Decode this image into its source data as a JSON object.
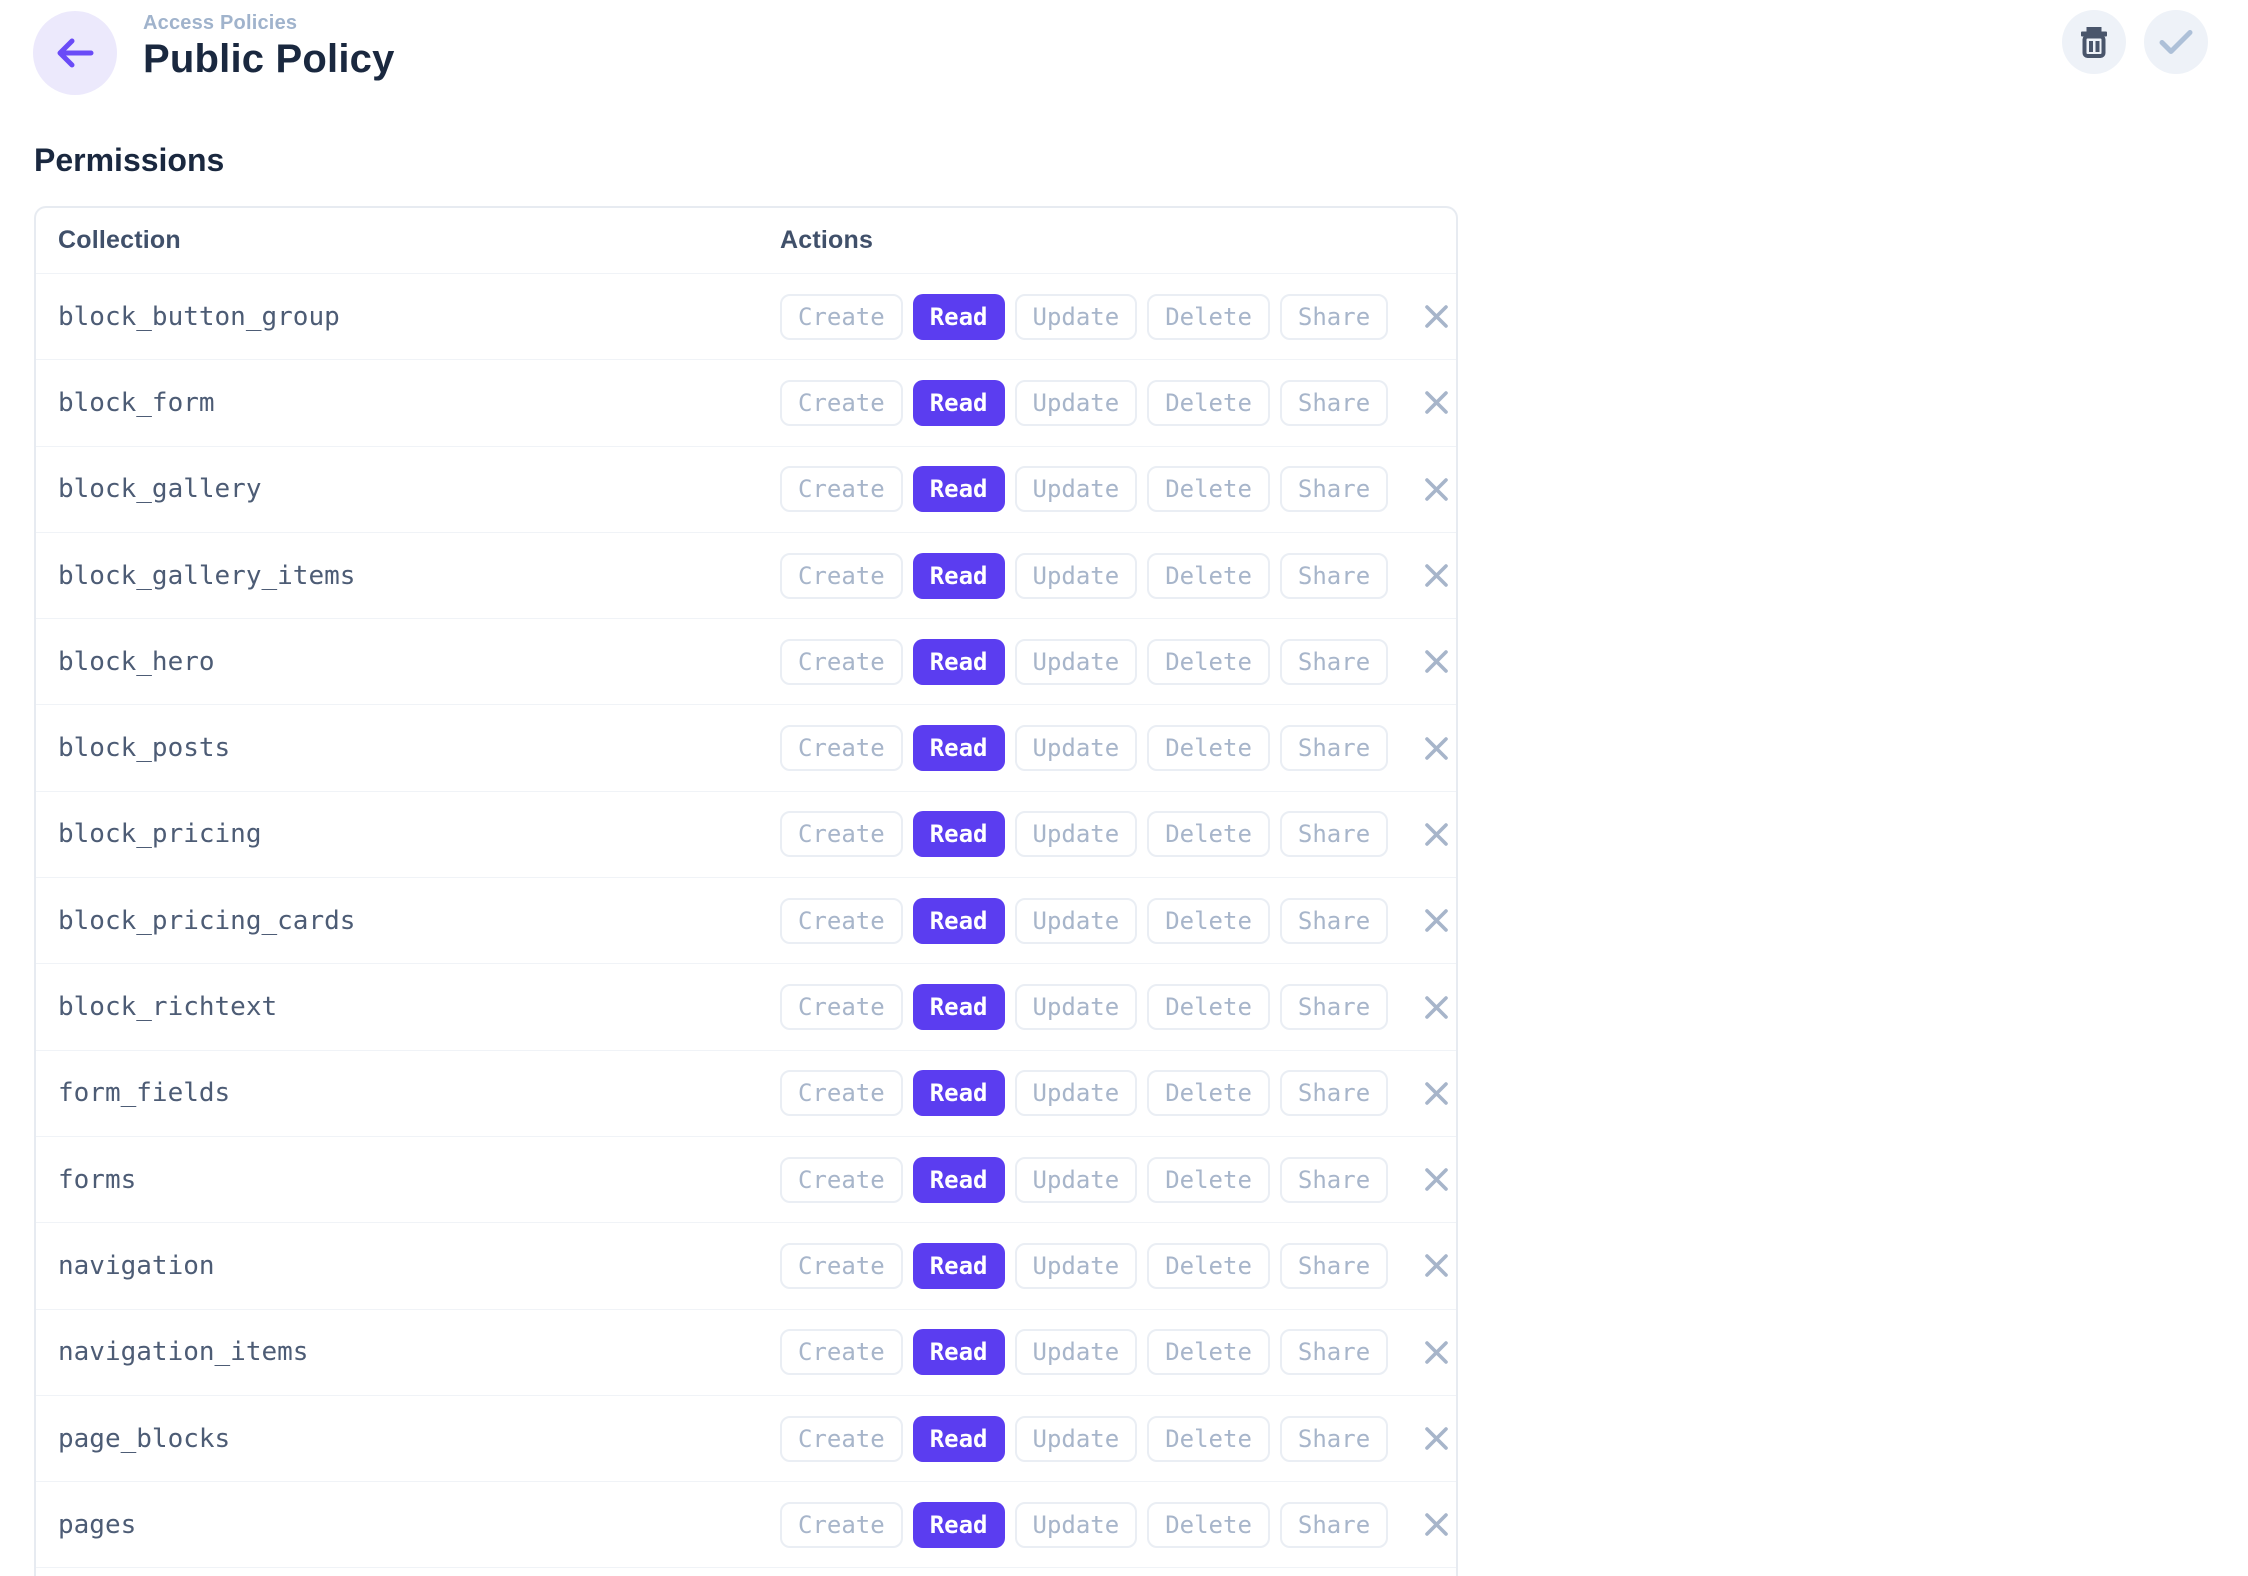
{
  "header": {
    "breadcrumb": "Access Policies",
    "title": "Public Policy",
    "back_icon": "arrow-left",
    "toolbar": [
      {
        "id": "delete",
        "icon": "trash"
      },
      {
        "id": "save",
        "icon": "check",
        "state": "disabled"
      }
    ]
  },
  "permissions": {
    "heading": "Permissions",
    "table": {
      "columns": [
        "Collection",
        "Actions"
      ],
      "action_labels": [
        "Create",
        "Read",
        "Update",
        "Delete",
        "Share"
      ],
      "rows": [
        {
          "collection": "block_button_group",
          "active_actions": [
            "Read"
          ]
        },
        {
          "collection": "block_form",
          "active_actions": [
            "Read"
          ]
        },
        {
          "collection": "block_gallery",
          "active_actions": [
            "Read"
          ]
        },
        {
          "collection": "block_gallery_items",
          "active_actions": [
            "Read"
          ]
        },
        {
          "collection": "block_hero",
          "active_actions": [
            "Read"
          ]
        },
        {
          "collection": "block_posts",
          "active_actions": [
            "Read"
          ]
        },
        {
          "collection": "block_pricing",
          "active_actions": [
            "Read"
          ]
        },
        {
          "collection": "block_pricing_cards",
          "active_actions": [
            "Read"
          ]
        },
        {
          "collection": "block_richtext",
          "active_actions": [
            "Read"
          ]
        },
        {
          "collection": "form_fields",
          "active_actions": [
            "Read"
          ]
        },
        {
          "collection": "forms",
          "active_actions": [
            "Read"
          ]
        },
        {
          "collection": "navigation",
          "active_actions": [
            "Read"
          ]
        },
        {
          "collection": "navigation_items",
          "active_actions": [
            "Read"
          ]
        },
        {
          "collection": "page_blocks",
          "active_actions": [
            "Read"
          ]
        },
        {
          "collection": "pages",
          "active_actions": [
            "Read"
          ]
        }
      ]
    }
  },
  "colors": {
    "accent": "#5b3df0",
    "accent_soft": "#ece9fc",
    "title": "#1a283f",
    "muted_action_text": "#a7b5ca",
    "collection_text": "#4d5c75",
    "table_border": "#e7ebf1"
  }
}
